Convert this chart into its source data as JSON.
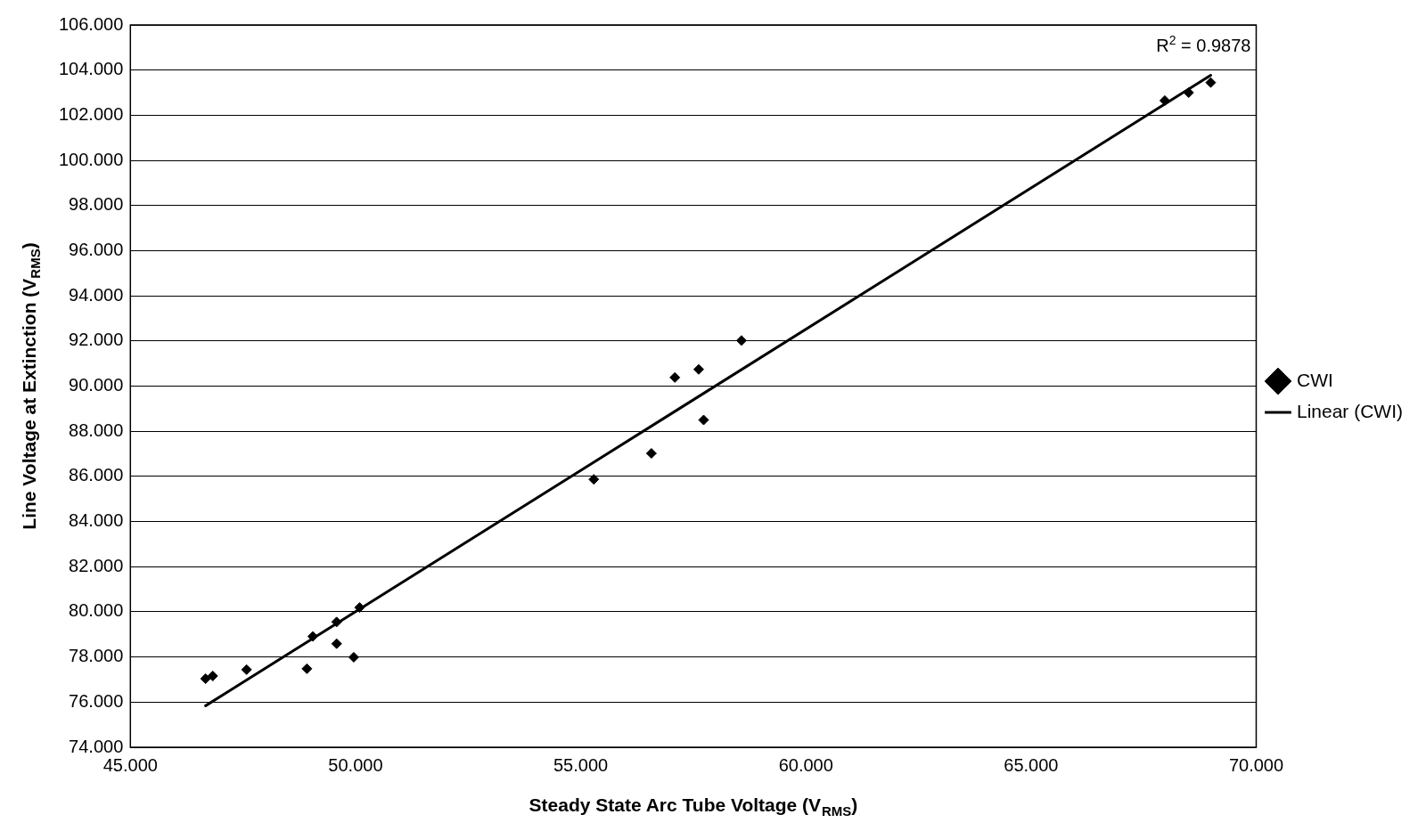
{
  "chart_data": {
    "type": "scatter",
    "xlabel": "Steady State Arc Tube Voltage (V$_{RMS}$)",
    "ylabel": "Line Voltage at Extinction (V$_{RMS}$)",
    "xlim": [
      45,
      70
    ],
    "ylim": [
      74,
      106
    ],
    "xticks": [
      {
        "value": 45,
        "label": "45.000"
      },
      {
        "value": 50,
        "label": "50.000"
      },
      {
        "value": 55,
        "label": "55.000"
      },
      {
        "value": 60,
        "label": "60.000"
      },
      {
        "value": 65,
        "label": "65.000"
      },
      {
        "value": 70,
        "label": "70.000"
      }
    ],
    "yticks": [
      {
        "value": 74,
        "label": "74.000"
      },
      {
        "value": 76,
        "label": "76.000"
      },
      {
        "value": 78,
        "label": "78.000"
      },
      {
        "value": 80,
        "label": "80.000"
      },
      {
        "value": 82,
        "label": "82.000"
      },
      {
        "value": 84,
        "label": "84.000"
      },
      {
        "value": 86,
        "label": "86.000"
      },
      {
        "value": 88,
        "label": "88.000"
      },
      {
        "value": 90,
        "label": "90.000"
      },
      {
        "value": 92,
        "label": "92.000"
      },
      {
        "value": 94,
        "label": "94.000"
      },
      {
        "value": 96,
        "label": "96.000"
      },
      {
        "value": 98,
        "label": "98.000"
      },
      {
        "value": 100,
        "label": "100.000"
      },
      {
        "value": 102,
        "label": "102.000"
      },
      {
        "value": 104,
        "label": "104.000"
      },
      {
        "value": 106,
        "label": "106.000"
      }
    ],
    "grid": "y",
    "legend": "right",
    "marker": "diamond",
    "series": [
      {
        "name": "CWI",
        "color": "#000000",
        "x": [
          46.67,
          46.83,
          47.58,
          48.92,
          49.05,
          49.58,
          49.58,
          49.96,
          50.09,
          55.29,
          56.57,
          57.09,
          57.62,
          57.73,
          58.57,
          67.97,
          68.5,
          68.99
        ],
        "values": [
          77.04,
          77.16,
          77.44,
          77.48,
          78.91,
          79.55,
          78.59,
          77.99,
          80.19,
          85.87,
          87.02,
          90.38,
          90.74,
          88.5,
          92.02,
          102.65,
          103.0,
          103.45
        ]
      },
      {
        "name": "Linear (CWI)",
        "type": "line",
        "marker": "none",
        "color": "#000000",
        "x": [
          46.67,
          68.99
        ],
        "values": [
          75.84,
          103.77
        ]
      }
    ],
    "annotations": [
      "R$^{2}$ = 0.9878"
    ]
  }
}
